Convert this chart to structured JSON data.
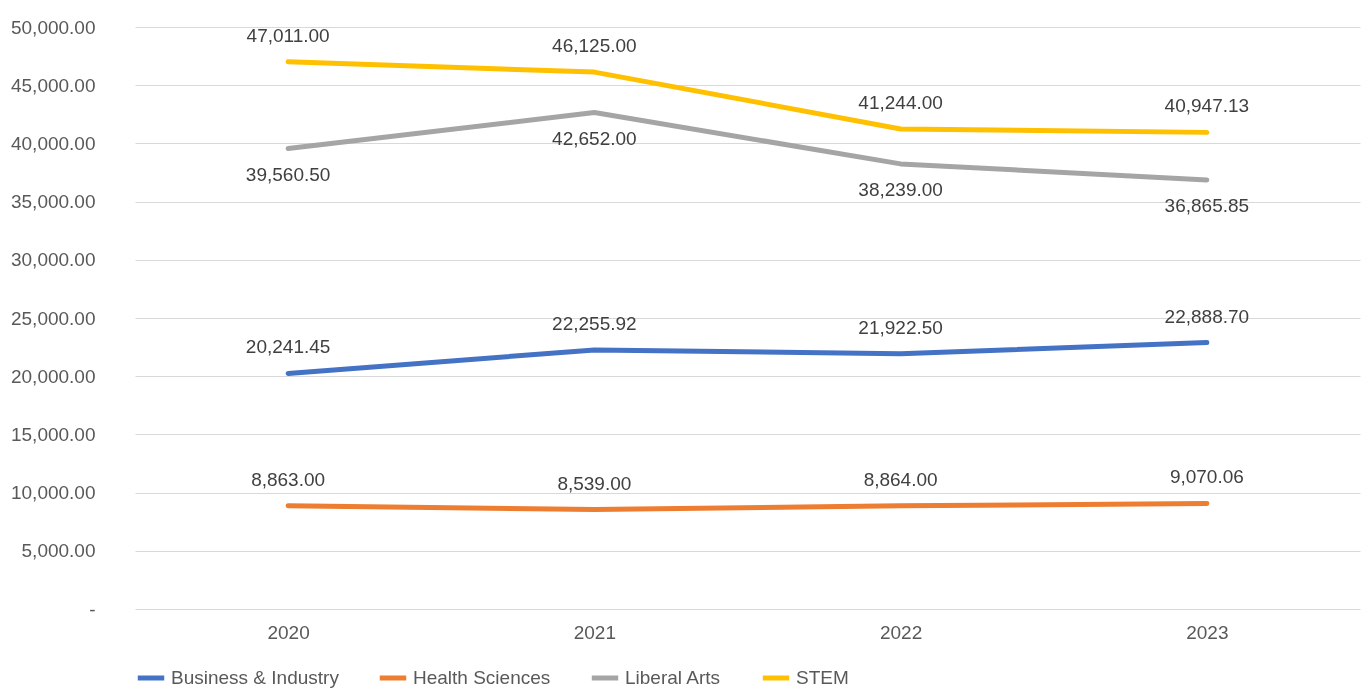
{
  "chart_data": {
    "type": "line",
    "categories": [
      "2020",
      "2021",
      "2022",
      "2023"
    ],
    "series": [
      {
        "name": "Business & Industry",
        "color": "#4472c4",
        "values": [
          20241.45,
          22255.92,
          21922.5,
          22888.7
        ],
        "value_labels": [
          "20,241.45",
          "22,255.92",
          "21,922.50",
          "22,888.70"
        ]
      },
      {
        "name": "Health Sciences",
        "color": "#ed7d31",
        "values": [
          8863,
          8539,
          8864,
          9070.06
        ],
        "value_labels": [
          "8,863.00",
          "8,539.00",
          "8,864.00",
          "9,070.06"
        ]
      },
      {
        "name": "Liberal Arts",
        "color": "#a5a5a5",
        "values": [
          39560.5,
          42652,
          38239,
          36865.85
        ],
        "value_labels": [
          "39,560.50",
          "42,652.00",
          "38,239.00",
          "36,865.85"
        ]
      },
      {
        "name": "STEM",
        "color": "#ffc000",
        "values": [
          47011,
          46125,
          41244,
          40947.13
        ],
        "value_labels": [
          "47,011.00",
          "46,125.00",
          "41,244.00",
          "40,947.13"
        ]
      }
    ],
    "ylim": [
      0,
      50000
    ],
    "yticks": [
      {
        "value": 0,
        "label": "-"
      },
      {
        "value": 5000,
        "label": "5,000.00"
      },
      {
        "value": 10000,
        "label": "10,000.00"
      },
      {
        "value": 15000,
        "label": "15,000.00"
      },
      {
        "value": 20000,
        "label": "20,000.00"
      },
      {
        "value": 25000,
        "label": "25,000.00"
      },
      {
        "value": 30000,
        "label": "30,000.00"
      },
      {
        "value": 35000,
        "label": "35,000.00"
      },
      {
        "value": 40000,
        "label": "40,000.00"
      },
      {
        "value": 45000,
        "label": "45,000.00"
      },
      {
        "value": 50000,
        "label": "50,000.00"
      }
    ],
    "grid": "y",
    "legend": "bottom",
    "marker": "none",
    "line_style": "solid"
  }
}
